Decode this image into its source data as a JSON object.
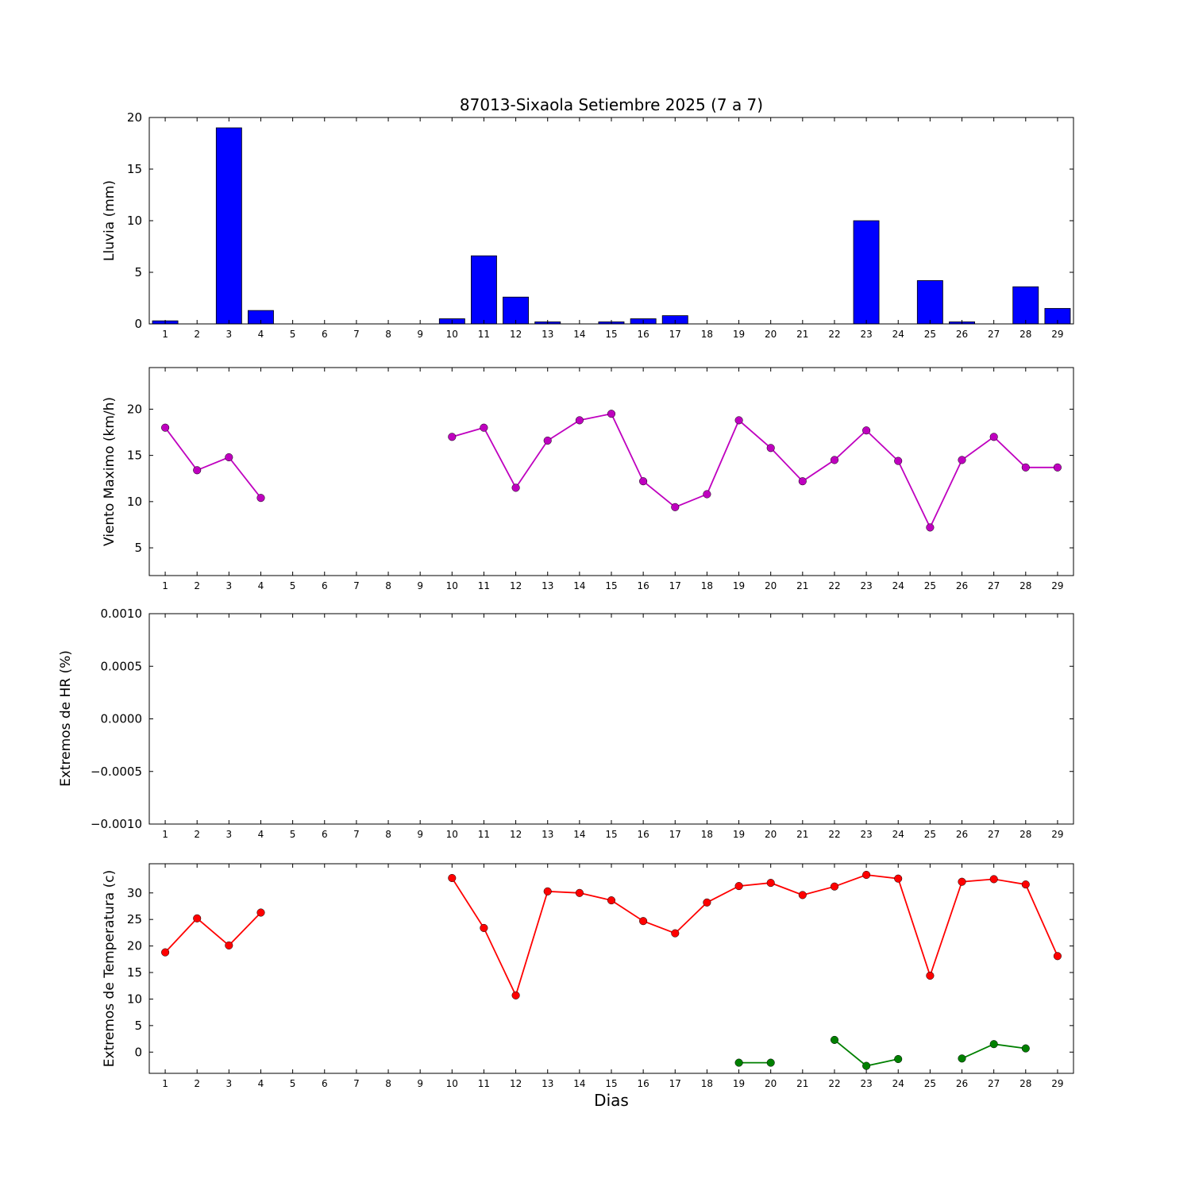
{
  "figure": {
    "title": "87013-Sixaola Setiembre 2025  (7 a 7)",
    "xlabel": "Dias",
    "background": "#ffffff",
    "days": [
      1,
      2,
      3,
      4,
      5,
      6,
      7,
      8,
      9,
      10,
      11,
      12,
      13,
      14,
      15,
      16,
      17,
      18,
      19,
      20,
      21,
      22,
      23,
      24,
      25,
      26,
      27,
      28,
      29
    ]
  },
  "chart_data": [
    {
      "type": "bar",
      "name": "lluvia",
      "ylabel": "Lluvia (mm)",
      "bar_color": "#0000ff",
      "values": [
        0.3,
        0,
        19,
        1.3,
        0,
        0,
        0,
        0,
        0,
        0.5,
        6.6,
        2.6,
        0.2,
        0,
        0.2,
        0.5,
        0.8,
        0,
        0,
        0,
        0,
        0,
        10,
        0,
        4.2,
        0.2,
        0,
        3.6,
        1.5
      ],
      "ylim": [
        0,
        20
      ],
      "yticks": [
        0,
        5,
        10,
        15,
        20
      ],
      "ytick_labels": [
        "0",
        "5",
        "10",
        "15",
        "20"
      ],
      "xlim": [
        0.5,
        29.5
      ],
      "grid": false
    },
    {
      "type": "line",
      "name": "viento",
      "ylabel": "Viento Maximo (km/h)",
      "series": [
        {
          "name": "viento-maximo",
          "color": "#bf00bf",
          "values": [
            18,
            13.4,
            14.8,
            10.4,
            null,
            null,
            null,
            null,
            null,
            17,
            18,
            11.5,
            16.6,
            18.8,
            19.5,
            12.2,
            9.4,
            10.8,
            18.8,
            15.8,
            12.2,
            14.5,
            17.7,
            14.4,
            7.2,
            14.5,
            17,
            13.7,
            13.7
          ]
        }
      ],
      "ylim": [
        2,
        24.5
      ],
      "yticks": [
        5,
        10,
        15,
        20
      ],
      "ytick_labels": [
        "5",
        "10",
        "15",
        "20"
      ],
      "xlim": [
        0.5,
        29.5
      ],
      "grid": false
    },
    {
      "type": "line",
      "name": "extremos-hr",
      "ylabel": "Extremos de HR (%)",
      "series": [],
      "ylim": [
        -0.001,
        0.001
      ],
      "yticks": [
        -0.001,
        -0.0005,
        0,
        0.0005,
        0.001
      ],
      "ytick_labels": [
        "−0.0010",
        "−0.0005",
        "0.0000",
        "0.0005",
        "0.0010"
      ],
      "xlim": [
        0.5,
        29.5
      ],
      "grid": false
    },
    {
      "type": "line",
      "name": "extremos-temperatura",
      "ylabel": "Extremos de Temperatura (c)",
      "series": [
        {
          "name": "temperatura-maxima",
          "color": "#ff0000",
          "values": [
            18.8,
            25.2,
            20.1,
            26.3,
            null,
            null,
            null,
            null,
            null,
            32.8,
            23.4,
            10.7,
            30.3,
            30,
            28.6,
            24.7,
            22.4,
            28.2,
            31.3,
            31.9,
            29.6,
            31.2,
            33.4,
            32.7,
            14.4,
            32.1,
            32.6,
            31.6,
            18.1
          ]
        },
        {
          "name": "temperatura-minima",
          "color": "#008000",
          "values": [
            null,
            null,
            null,
            null,
            null,
            null,
            null,
            null,
            null,
            null,
            null,
            null,
            null,
            null,
            null,
            null,
            null,
            null,
            -2,
            -2,
            null,
            2.3,
            -2.6,
            -1.3,
            null,
            -1.2,
            1.5,
            0.7,
            null
          ]
        }
      ],
      "ylim": [
        -4,
        35.5
      ],
      "yticks": [
        0,
        5,
        10,
        15,
        20,
        25,
        30
      ],
      "ytick_labels": [
        "0",
        "5",
        "10",
        "15",
        "20",
        "25",
        "30"
      ],
      "xlim": [
        0.5,
        29.5
      ],
      "grid": false
    }
  ]
}
